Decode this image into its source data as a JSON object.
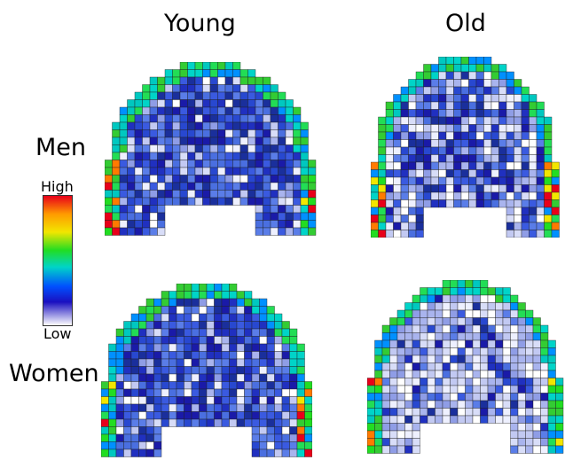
{
  "columns": {
    "young": "Young",
    "old": "Old"
  },
  "rows": {
    "men": "Men",
    "women": "Women"
  },
  "legend": {
    "high": "High",
    "low": "Low",
    "colors": [
      "#e8001a",
      "#ff9a00",
      "#f2e600",
      "#22dd22",
      "#00d4c8",
      "#0050ff",
      "#1a10c0",
      "#ffffff"
    ]
  },
  "maps": [
    {
      "id": "young-men",
      "group": "Men",
      "age": "Young",
      "tone": "dense-blue"
    },
    {
      "id": "old-men",
      "group": "Men",
      "age": "Old",
      "tone": "mixed-blue-white"
    },
    {
      "id": "young-women",
      "group": "Women",
      "age": "Young",
      "tone": "dense-blue"
    },
    {
      "id": "old-women",
      "group": "Women",
      "age": "Old",
      "tone": "mostly-white"
    }
  ]
}
